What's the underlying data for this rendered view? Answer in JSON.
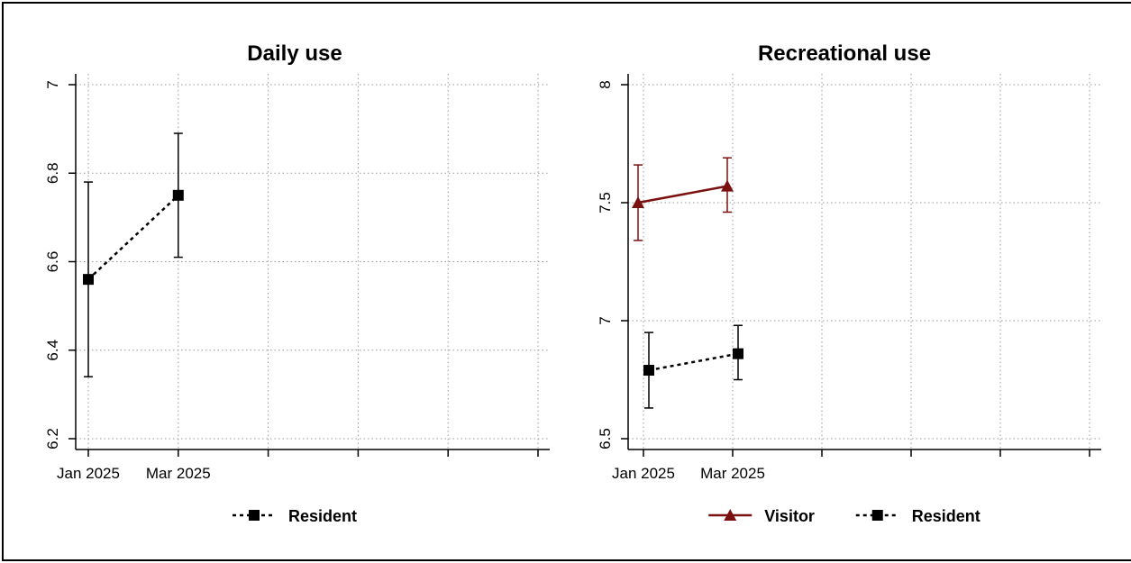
{
  "chart_data": [
    {
      "type": "line",
      "title": "Daily use",
      "xlabel": "",
      "ylabel": "",
      "ylim": [
        6.2,
        7.0
      ],
      "yticks": [
        6.2,
        6.4,
        6.6,
        6.8,
        7.0
      ],
      "ytick_labels": [
        "6.2",
        "6.4",
        "6.6",
        "6.8",
        "7"
      ],
      "categories": [
        "Jan 2025",
        "Mar 2025",
        "",
        "",
        "",
        ""
      ],
      "grid": true,
      "legend_placement": "bottom",
      "series": [
        {
          "name": "Resident",
          "color": "#000000",
          "marker": "square",
          "line": "dotted",
          "points": [
            {
              "x": "Jan 2025",
              "y": 6.56,
              "lo": 6.34,
              "hi": 6.78
            },
            {
              "x": "Mar 2025",
              "y": 6.75,
              "lo": 6.61,
              "hi": 6.89
            }
          ]
        }
      ]
    },
    {
      "type": "line",
      "title": "Recreational use",
      "xlabel": "",
      "ylabel": "",
      "ylim": [
        6.5,
        8.0
      ],
      "yticks": [
        6.5,
        7.0,
        7.5,
        8.0
      ],
      "ytick_labels": [
        "6.5",
        "7",
        "7.5",
        "8"
      ],
      "categories": [
        "Jan 2025",
        "Mar 2025",
        "",
        "",
        "",
        ""
      ],
      "grid": true,
      "legend_placement": "bottom",
      "series": [
        {
          "name": "Visitor",
          "color": "#7b1010",
          "marker": "triangle",
          "line": "solid",
          "points": [
            {
              "x": "Jan 2025",
              "y": 7.5,
              "lo": 7.34,
              "hi": 7.66
            },
            {
              "x": "Mar 2025",
              "y": 7.57,
              "lo": 7.46,
              "hi": 7.69
            }
          ]
        },
        {
          "name": "Resident",
          "color": "#000000",
          "marker": "square",
          "line": "dotted",
          "points": [
            {
              "x": "Jan 2025",
              "y": 6.79,
              "lo": 6.63,
              "hi": 6.95
            },
            {
              "x": "Mar 2025",
              "y": 6.86,
              "lo": 6.75,
              "hi": 6.98
            }
          ]
        }
      ]
    }
  ]
}
